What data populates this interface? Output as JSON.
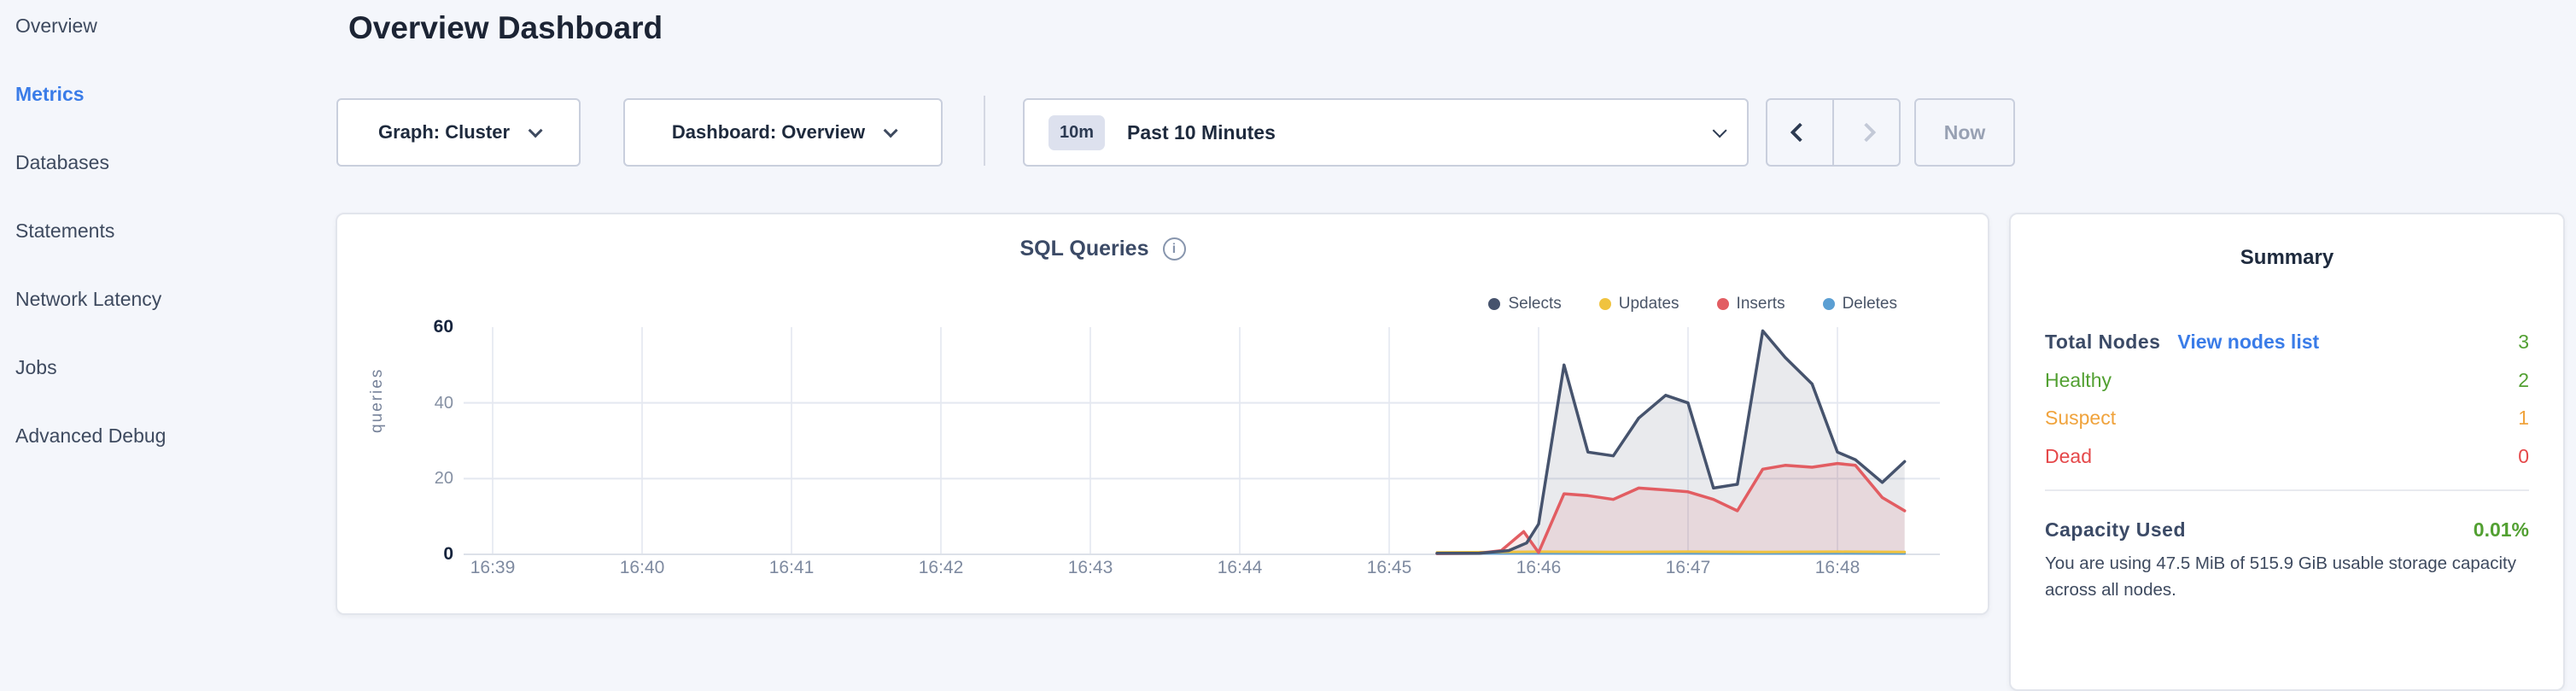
{
  "sidebar": {
    "items": [
      {
        "label": "Overview",
        "active": false
      },
      {
        "label": "Metrics",
        "active": true
      },
      {
        "label": "Databases",
        "active": false
      },
      {
        "label": "Statements",
        "active": false
      },
      {
        "label": "Network Latency",
        "active": false
      },
      {
        "label": "Jobs",
        "active": false
      },
      {
        "label": "Advanced Debug",
        "active": false
      }
    ]
  },
  "header": {
    "title": "Overview Dashboard"
  },
  "controls": {
    "graph_dropdown": {
      "label": "Graph: Cluster"
    },
    "dashboard_dropdown": {
      "label": "Dashboard: Overview"
    },
    "time_selector": {
      "badge": "10m",
      "label": "Past 10 Minutes"
    },
    "pager": {
      "prev_enabled": true,
      "next_enabled": false
    },
    "now_label": "Now"
  },
  "chart_data": {
    "type": "area",
    "title": "SQL Queries",
    "ylabel": "queries",
    "xlabel": "",
    "ylim": [
      0,
      60
    ],
    "yticks": [
      0,
      20,
      40,
      60
    ],
    "x_tick_labels": [
      "16:39",
      "16:40",
      "16:41",
      "16:42",
      "16:43",
      "16:44",
      "16:45",
      "16:46",
      "16:47",
      "16:48"
    ],
    "x_unit": "minutes since 16:39",
    "grid": true,
    "legend_position": "top-right",
    "series": [
      {
        "name": "Selects",
        "color": "#46536d",
        "fill": "rgba(70,83,109,0.12)",
        "x": [
          6.32,
          6.6,
          6.8,
          6.92,
          7.0,
          7.17,
          7.33,
          7.5,
          7.67,
          7.85,
          8.0,
          8.17,
          8.33,
          8.5,
          8.65,
          8.83,
          9.0,
          9.12,
          9.3,
          9.45
        ],
        "values": [
          0.3,
          0.3,
          1,
          3,
          8,
          50,
          27,
          26,
          36,
          42,
          40,
          17.5,
          18.5,
          59,
          52,
          45,
          27,
          25,
          19,
          24.5
        ]
      },
      {
        "name": "Updates",
        "color": "#f0c33f",
        "fill": null,
        "x": [
          6.32,
          7.0,
          7.5,
          8.0,
          8.5,
          9.0,
          9.45
        ],
        "values": [
          0.5,
          0.7,
          0.6,
          0.7,
          0.6,
          0.7,
          0.6
        ]
      },
      {
        "name": "Inserts",
        "color": "#e25d62",
        "fill": "rgba(226,93,98,0.12)",
        "x": [
          6.32,
          6.6,
          6.75,
          6.9,
          7.0,
          7.17,
          7.33,
          7.5,
          7.67,
          7.85,
          8.0,
          8.17,
          8.33,
          8.5,
          8.65,
          8.83,
          9.0,
          9.12,
          9.3,
          9.45
        ],
        "values": [
          0.2,
          0.3,
          1,
          6,
          0.5,
          16,
          15.5,
          14.5,
          17.5,
          17,
          16.5,
          14.5,
          11.5,
          22.5,
          23.5,
          23,
          24,
          23.5,
          15,
          11.5
        ]
      },
      {
        "name": "Deletes",
        "color": "#5b9fd3",
        "fill": null,
        "x": [
          6.32,
          7.0,
          7.5,
          8.0,
          8.5,
          9.0,
          9.45
        ],
        "values": [
          0.25,
          0.3,
          0.25,
          0.3,
          0.25,
          0.3,
          0.25
        ]
      }
    ]
  },
  "summary": {
    "title": "Summary",
    "total_nodes": {
      "label": "Total Nodes",
      "link": "View nodes list",
      "value": "3",
      "value_color": "#52a032"
    },
    "statuses": [
      {
        "label": "Healthy",
        "value": "2",
        "color": "#52a032"
      },
      {
        "label": "Suspect",
        "value": "1",
        "color": "#f0a33c"
      },
      {
        "label": "Dead",
        "value": "0",
        "color": "#e5484a"
      }
    ],
    "capacity": {
      "label": "Capacity Used",
      "value": "0.01%",
      "value_color": "#52a032",
      "description": "You are using 47.5 MiB of 515.9 GiB usable storage capacity across all nodes."
    }
  }
}
